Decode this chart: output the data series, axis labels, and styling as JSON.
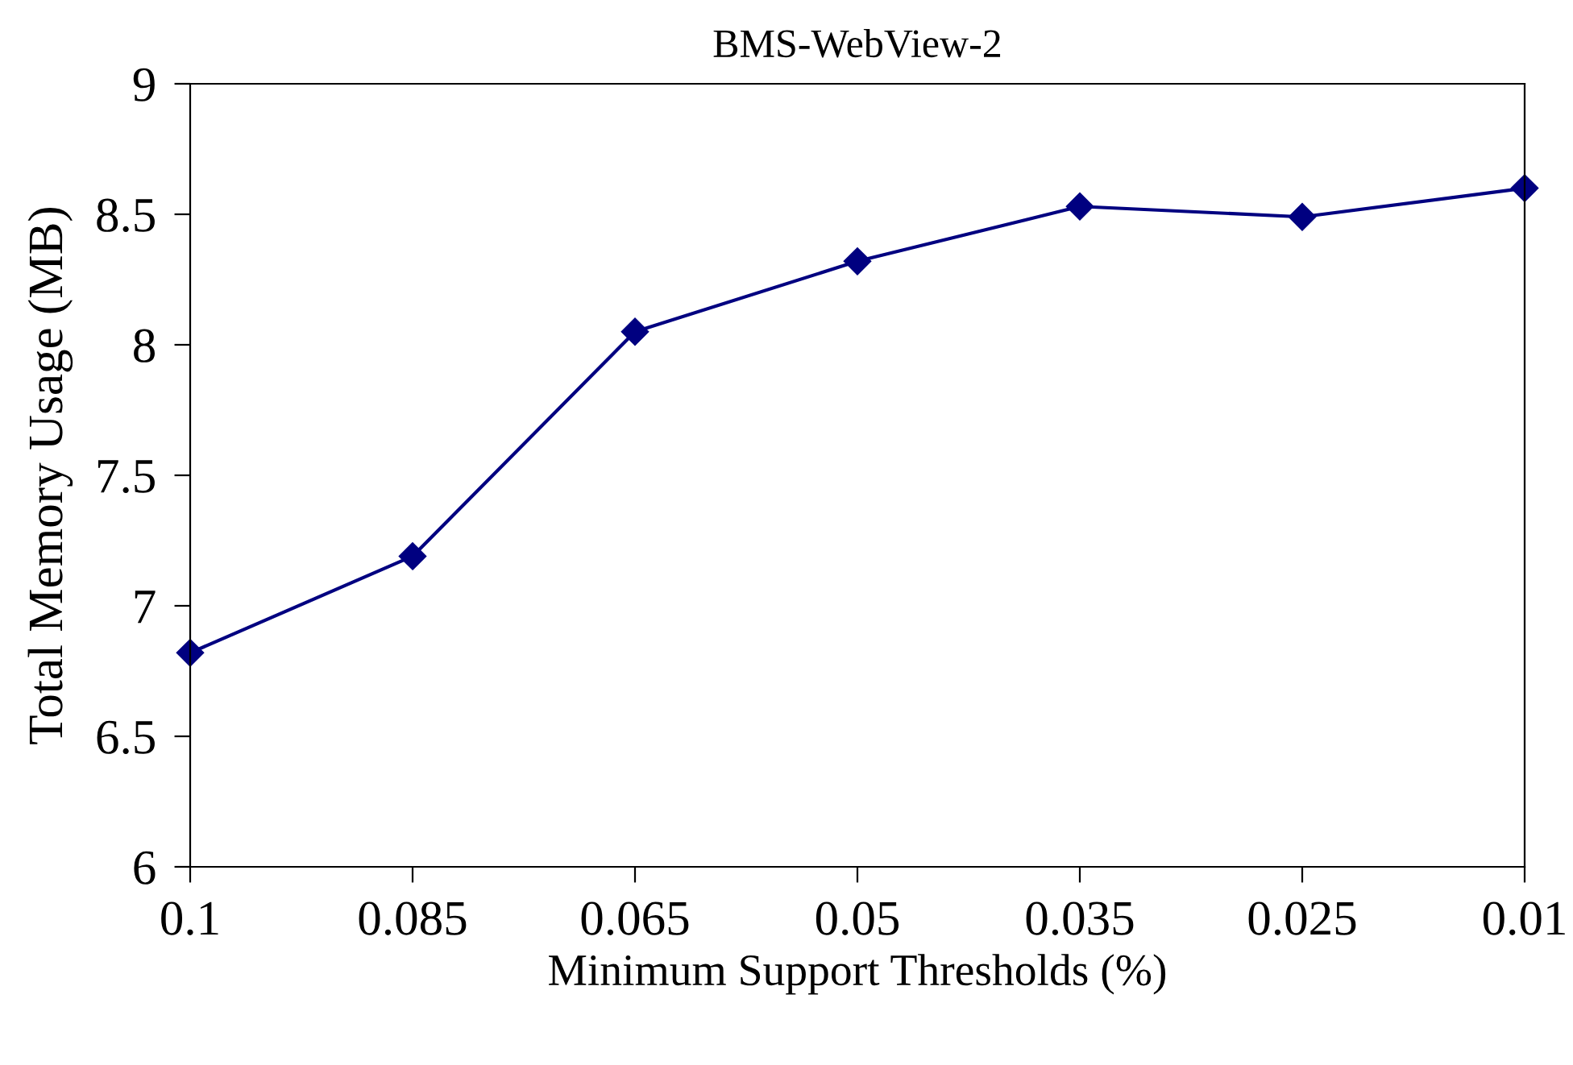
{
  "chart_data": {
    "type": "line",
    "title": "BMS-WebView-2",
    "xlabel": "Minimum Support Thresholds (%)",
    "ylabel": "Total Memory Usage (MB)",
    "categories": [
      "0.1",
      "0.085",
      "0.065",
      "0.05",
      "0.035",
      "0.025",
      "0.01"
    ],
    "series": [
      {
        "color": "#000080",
        "values": [
          6.82,
          7.19,
          8.05,
          8.32,
          8.53,
          8.49,
          8.6
        ]
      }
    ],
    "ylim": [
      6,
      9
    ],
    "yticks": [
      6,
      6.5,
      7,
      7.5,
      8,
      8.5,
      9
    ],
    "grid": false,
    "legend": false,
    "marker": "diamond",
    "line_style": "solid"
  }
}
